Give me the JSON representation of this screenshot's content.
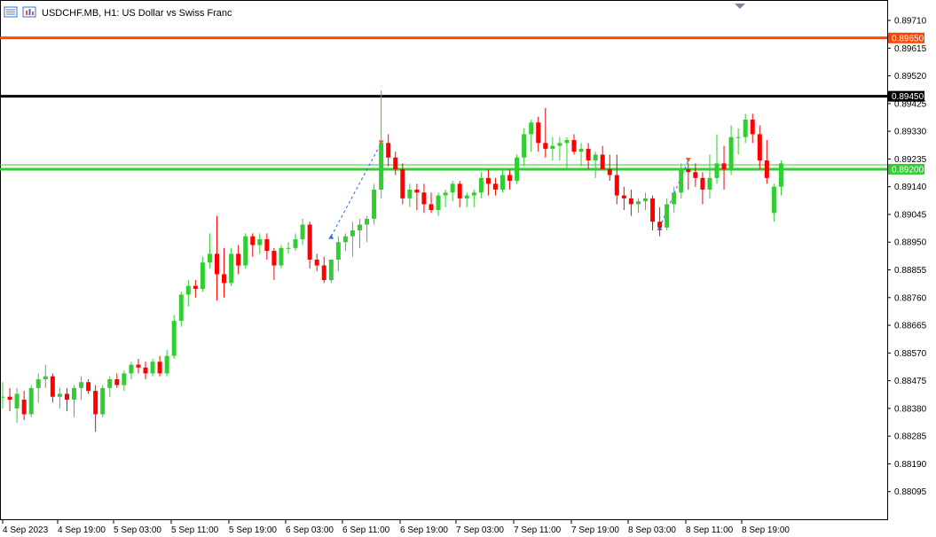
{
  "window": {
    "symbol": "USDCHF.MB",
    "timeframe": "H1",
    "description": "US Dollar vs Swiss Franc",
    "title": "USDCHF.MB, H1:  US Dollar vs Swiss Franc"
  },
  "icons": [
    "chart-menu-icon",
    "chart-bars-icon"
  ],
  "colors": {
    "bull": "#32CD32",
    "bear": "#FF0000",
    "level_resistance": "#FF4500",
    "level_black": "#000000",
    "level_green": "#32CD32",
    "axis": "#000000",
    "background": "#FFFFFF"
  },
  "chart_data": {
    "type": "candlestick",
    "ylim": [
      0.88,
      0.8978
    ],
    "price_ticks": [
      "0.89710",
      "0.89615",
      "0.89520",
      "0.89425",
      "0.89330",
      "0.89235",
      "0.89140",
      "0.89045",
      "0.88950",
      "0.88855",
      "0.88760",
      "0.88665",
      "0.88570",
      "0.88475",
      "0.88380",
      "0.88285",
      "0.88190",
      "0.88095"
    ],
    "time_labels": [
      "4 Sep 2023",
      "4 Sep 19:00",
      "5 Sep 03:00",
      "5 Sep 11:00",
      "5 Sep 19:00",
      "6 Sep 03:00",
      "6 Sep 11:00",
      "6 Sep 19:00",
      "7 Sep 03:00",
      "7 Sep 11:00",
      "7 Sep 19:00",
      "8 Sep 03:00",
      "8 Sep 11:00",
      "8 Sep 19:00"
    ],
    "levels": [
      {
        "price": 0.8965,
        "label": "0.89650",
        "color": "#FF4500"
      },
      {
        "price": 0.8945,
        "label": "0.89450",
        "color": "#000000"
      },
      {
        "price": 0.892,
        "label": "0.89200",
        "color": "#32CD32"
      }
    ],
    "candles": [
      [
        0.8842,
        0.8847,
        0.8838,
        0.8842
      ],
      [
        0.8842,
        0.8845,
        0.8837,
        0.8841
      ],
      [
        0.8838,
        0.8845,
        0.8833,
        0.8843
      ],
      [
        0.8841,
        0.8844,
        0.8834,
        0.8836
      ],
      [
        0.8836,
        0.8846,
        0.8835,
        0.8845
      ],
      [
        0.8845,
        0.885,
        0.884,
        0.8848
      ],
      [
        0.8848,
        0.8853,
        0.8845,
        0.8849
      ],
      [
        0.8849,
        0.885,
        0.884,
        0.8842
      ],
      [
        0.8842,
        0.8845,
        0.8838,
        0.8843
      ],
      [
        0.8843,
        0.8845,
        0.8837,
        0.8841
      ],
      [
        0.8841,
        0.8846,
        0.8835,
        0.8845
      ],
      [
        0.8845,
        0.8849,
        0.8841,
        0.8847
      ],
      [
        0.8847,
        0.8848,
        0.8843,
        0.8844
      ],
      [
        0.8844,
        0.8846,
        0.883,
        0.8836
      ],
      [
        0.8836,
        0.8846,
        0.8835,
        0.8845
      ],
      [
        0.8845,
        0.8849,
        0.8842,
        0.8848
      ],
      [
        0.8848,
        0.885,
        0.8845,
        0.8846
      ],
      [
        0.8846,
        0.8851,
        0.8844,
        0.885
      ],
      [
        0.885,
        0.8854,
        0.8848,
        0.8853
      ],
      [
        0.8853,
        0.8855,
        0.885,
        0.8852
      ],
      [
        0.8852,
        0.8854,
        0.8848,
        0.885
      ],
      [
        0.885,
        0.8855,
        0.8849,
        0.8854
      ],
      [
        0.8854,
        0.8856,
        0.8849,
        0.885
      ],
      [
        0.885,
        0.8858,
        0.8849,
        0.8856
      ],
      [
        0.8856,
        0.887,
        0.8855,
        0.8868
      ],
      [
        0.8868,
        0.8878,
        0.8866,
        0.8877
      ],
      [
        0.8877,
        0.8882,
        0.8873,
        0.888
      ],
      [
        0.888,
        0.8882,
        0.8876,
        0.8879
      ],
      [
        0.8879,
        0.889,
        0.8878,
        0.8888
      ],
      [
        0.8888,
        0.8898,
        0.8886,
        0.8891
      ],
      [
        0.8891,
        0.8904,
        0.8875,
        0.8884
      ],
      [
        0.8884,
        0.8893,
        0.8876,
        0.8881
      ],
      [
        0.8881,
        0.8893,
        0.888,
        0.8891
      ],
      [
        0.8891,
        0.8894,
        0.8884,
        0.8887
      ],
      [
        0.8887,
        0.8898,
        0.8886,
        0.8897
      ],
      [
        0.8897,
        0.8898,
        0.889,
        0.8894
      ],
      [
        0.8894,
        0.8898,
        0.8891,
        0.8896
      ],
      [
        0.8896,
        0.8898,
        0.8889,
        0.8892
      ],
      [
        0.8892,
        0.8893,
        0.8882,
        0.8887
      ],
      [
        0.8887,
        0.8894,
        0.8886,
        0.8893
      ],
      [
        0.8893,
        0.8895,
        0.8891,
        0.8893
      ],
      [
        0.8893,
        0.8898,
        0.8892,
        0.8896
      ],
      [
        0.8896,
        0.8903,
        0.8894,
        0.8901
      ],
      [
        0.8901,
        0.8902,
        0.8886,
        0.8889
      ],
      [
        0.8889,
        0.8891,
        0.8885,
        0.8887
      ],
      [
        0.8887,
        0.889,
        0.8881,
        0.8882
      ],
      [
        0.8882,
        0.8889,
        0.8881,
        0.8889
      ],
      [
        0.8889,
        0.8897,
        0.8885,
        0.8895
      ],
      [
        0.8895,
        0.8898,
        0.8892,
        0.8897
      ],
      [
        0.8897,
        0.8902,
        0.889,
        0.8899
      ],
      [
        0.8899,
        0.8903,
        0.8893,
        0.8901
      ],
      [
        0.8901,
        0.8904,
        0.8895,
        0.8903
      ],
      [
        0.8903,
        0.8915,
        0.8901,
        0.8913
      ],
      [
        0.8913,
        0.8947,
        0.891,
        0.8929
      ],
      [
        0.8929,
        0.8932,
        0.8921,
        0.8924
      ],
      [
        0.8924,
        0.8926,
        0.8918,
        0.892
      ],
      [
        0.892,
        0.8922,
        0.8908,
        0.891
      ],
      [
        0.891,
        0.8915,
        0.8907,
        0.8913
      ],
      [
        0.8913,
        0.8915,
        0.8906,
        0.8912
      ],
      [
        0.8912,
        0.8915,
        0.8905,
        0.8908
      ],
      [
        0.8908,
        0.8912,
        0.8905,
        0.8906
      ],
      [
        0.8906,
        0.8912,
        0.8904,
        0.8911
      ],
      [
        0.8911,
        0.8913,
        0.8907,
        0.8912
      ],
      [
        0.8912,
        0.8916,
        0.8909,
        0.8915
      ],
      [
        0.8915,
        0.8916,
        0.8907,
        0.891
      ],
      [
        0.891,
        0.8912,
        0.8907,
        0.8911
      ],
      [
        0.8911,
        0.8913,
        0.8907,
        0.8912
      ],
      [
        0.8912,
        0.8919,
        0.891,
        0.8917
      ],
      [
        0.8917,
        0.892,
        0.8911,
        0.8915
      ],
      [
        0.8915,
        0.8917,
        0.8911,
        0.8913
      ],
      [
        0.8913,
        0.892,
        0.8912,
        0.8918
      ],
      [
        0.8918,
        0.892,
        0.8913,
        0.8916
      ],
      [
        0.8916,
        0.8925,
        0.8915,
        0.8924
      ],
      [
        0.8924,
        0.8934,
        0.8921,
        0.8932
      ],
      [
        0.8932,
        0.8937,
        0.8926,
        0.8936
      ],
      [
        0.8936,
        0.8938,
        0.8926,
        0.8929
      ],
      [
        0.8929,
        0.8941,
        0.8924,
        0.8927
      ],
      [
        0.8927,
        0.8931,
        0.8923,
        0.8928
      ],
      [
        0.8928,
        0.8931,
        0.8923,
        0.8929
      ],
      [
        0.8929,
        0.8931,
        0.892,
        0.893
      ],
      [
        0.893,
        0.8932,
        0.8925,
        0.8926
      ],
      [
        0.8926,
        0.8929,
        0.8921,
        0.8927
      ],
      [
        0.8927,
        0.8929,
        0.892,
        0.8923
      ],
      [
        0.8923,
        0.8926,
        0.8917,
        0.8925
      ],
      [
        0.8925,
        0.8928,
        0.892,
        0.892
      ],
      [
        0.892,
        0.8925,
        0.8916,
        0.8918
      ],
      [
        0.8918,
        0.8925,
        0.8908,
        0.8911
      ],
      [
        0.8911,
        0.8914,
        0.8906,
        0.891
      ],
      [
        0.891,
        0.8913,
        0.8904,
        0.8908
      ],
      [
        0.8908,
        0.891,
        0.8905,
        0.8909
      ],
      [
        0.8909,
        0.8912,
        0.8906,
        0.891
      ],
      [
        0.891,
        0.8911,
        0.8899,
        0.8902
      ],
      [
        0.8902,
        0.8907,
        0.8897,
        0.89
      ],
      [
        0.89,
        0.891,
        0.8899,
        0.8908
      ],
      [
        0.8908,
        0.8914,
        0.8905,
        0.8912
      ],
      [
        0.8912,
        0.8922,
        0.891,
        0.892
      ],
      [
        0.892,
        0.8922,
        0.8913,
        0.8919
      ],
      [
        0.8919,
        0.8922,
        0.8914,
        0.8917
      ],
      [
        0.8917,
        0.8919,
        0.8908,
        0.8913
      ],
      [
        0.8913,
        0.8925,
        0.891,
        0.8917
      ],
      [
        0.8917,
        0.8932,
        0.8915,
        0.8922
      ],
      [
        0.8922,
        0.8928,
        0.8913,
        0.892
      ],
      [
        0.892,
        0.8935,
        0.8918,
        0.8931
      ],
      [
        0.8931,
        0.8934,
        0.8925,
        0.8931
      ],
      [
        0.8931,
        0.8939,
        0.8929,
        0.8937
      ],
      [
        0.8937,
        0.8939,
        0.8929,
        0.8932
      ],
      [
        0.8932,
        0.8935,
        0.892,
        0.8923
      ],
      [
        0.8923,
        0.893,
        0.8915,
        0.8917
      ],
      [
        0.8905,
        0.8915,
        0.8902,
        0.8914
      ],
      [
        0.8914,
        0.8923,
        0.8911,
        0.8922
      ]
    ]
  }
}
